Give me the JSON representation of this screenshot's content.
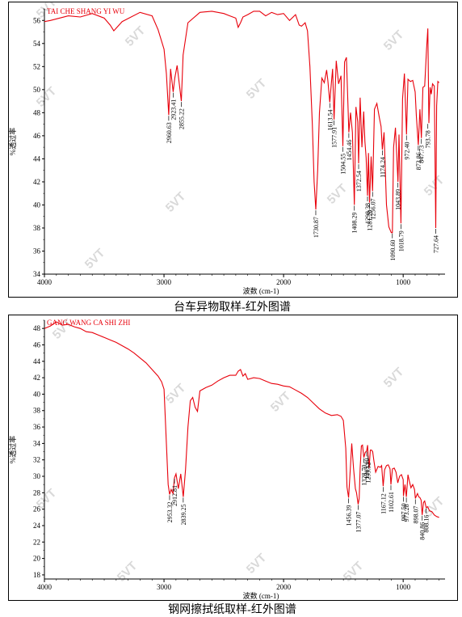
{
  "chart_data": [
    {
      "type": "line",
      "sample_label": "TAI CHE SHANG YI WU",
      "xlabel": "波数 (cm-1)",
      "ylabel": "%透过率",
      "caption": "台车异物取样-红外图谱",
      "xlim": [
        4000,
        650
      ],
      "ylim": [
        34,
        57
      ],
      "x_ticks": [
        4000,
        3000,
        2000,
        1000
      ],
      "y_ticks": [
        34,
        36,
        38,
        40,
        42,
        44,
        46,
        48,
        50,
        52,
        54,
        56
      ],
      "color": "#e8000b",
      "series": [
        {
          "x": [
            4000,
            3950,
            3800,
            3700,
            3600,
            3500,
            3450,
            3420,
            3350,
            3200,
            3100,
            3050,
            3000,
            2980,
            2960.63,
            2945,
            2923.41,
            2910,
            2890,
            2855.22,
            2840,
            2800,
            2700,
            2600,
            2500,
            2450,
            2400,
            2380,
            2360,
            2340,
            2300,
            2250,
            2200,
            2150,
            2100,
            2050,
            2000,
            1950,
            1900,
            1870,
            1850,
            1820,
            1800,
            1780,
            1760,
            1745,
            1730.87,
            1715,
            1700,
            1680,
            1660,
            1640,
            1630,
            1613.54,
            1600,
            1590,
            1577.91,
            1560,
            1540,
            1520,
            1504.55,
            1490,
            1475,
            1454.46,
            1440,
            1425,
            1408.29,
            1395,
            1380,
            1372.54,
            1360,
            1345,
            1330,
            1320,
            1310,
            1298.38,
            1290,
            1281.2,
            1268,
            1256.07,
            1240,
            1220,
            1200,
            1185,
            1174.24,
            1160,
            1140,
            1120,
            1100,
            1090.6,
            1080,
            1065,
            1043.89,
            1035,
            1018.79,
            1005,
            990,
            972.4,
            960,
            940,
            920,
            900,
            890,
            873.86,
            860,
            847.73,
            835,
            820,
            805,
            793.78,
            785,
            775,
            765,
            755,
            740,
            727.64,
            720,
            710,
            700
          ],
          "y": [
            55.9,
            56.0,
            56.4,
            56.3,
            56.6,
            56.2,
            55.6,
            55.1,
            55.9,
            56.7,
            56.4,
            55.2,
            53.5,
            51.4,
            47.8,
            51.8,
            49.8,
            51.0,
            52.1,
            49.0,
            53.0,
            55.8,
            56.7,
            56.8,
            56.6,
            56.4,
            56.2,
            55.4,
            55.8,
            56.3,
            56.5,
            56.8,
            56.8,
            56.4,
            56.7,
            56.5,
            56.6,
            56.0,
            56.5,
            55.6,
            55.5,
            55.8,
            55.1,
            52.0,
            47.0,
            42.0,
            39.6,
            43.0,
            48.0,
            51.0,
            50.6,
            51.7,
            50.8,
            48.9,
            50.6,
            51.8,
            47.4,
            52.5,
            50.5,
            51.2,
            45.1,
            52.4,
            52.8,
            46.3,
            48.0,
            46.3,
            40.0,
            48.5,
            47.2,
            43.6,
            49.3,
            45.0,
            48.1,
            45.5,
            44.1,
            40.8,
            44.5,
            40.2,
            44.2,
            41.2,
            48.3,
            48.8,
            47.6,
            46.8,
            44.8,
            46.3,
            40.0,
            38.1,
            37.6,
            37.6,
            45.0,
            46.7,
            42.0,
            46.1,
            38.4,
            49.2,
            51.4,
            46.1,
            50.9,
            50.7,
            50.8,
            49.8,
            47.7,
            45.2,
            48.3,
            45.8,
            50.2,
            50.3,
            53.5,
            55.3,
            47.1,
            50.2,
            49.6,
            50.5,
            50.3,
            38.0,
            48.6,
            50.7,
            50.6
          ]
        }
      ],
      "peaks": [
        {
          "x": 2960.63,
          "y": 47.8,
          "label": "2960.63"
        },
        {
          "x": 2923.41,
          "y": 49.8,
          "label": "2923.41"
        },
        {
          "x": 2855.22,
          "y": 49.0,
          "label": "2855.22"
        },
        {
          "x": 1730.87,
          "y": 39.6,
          "label": "1730.87"
        },
        {
          "x": 1613.54,
          "y": 48.9,
          "label": "1613.54"
        },
        {
          "x": 1577.91,
          "y": 47.4,
          "label": "1577.91"
        },
        {
          "x": 1504.55,
          "y": 45.1,
          "label": "1504.55"
        },
        {
          "x": 1454.46,
          "y": 46.3,
          "label": "1454.46"
        },
        {
          "x": 1408.29,
          "y": 40.0,
          "label": "1408.29"
        },
        {
          "x": 1372.54,
          "y": 43.6,
          "label": "1372.54"
        },
        {
          "x": 1298.38,
          "y": 40.8,
          "label": "1298.38"
        },
        {
          "x": 1281.2,
          "y": 40.2,
          "label": "1281.20"
        },
        {
          "x": 1256.07,
          "y": 41.2,
          "label": "1256.07"
        },
        {
          "x": 1174.24,
          "y": 44.8,
          "label": "1174.24"
        },
        {
          "x": 1090.6,
          "y": 37.6,
          "label": "1090.60"
        },
        {
          "x": 1043.89,
          "y": 42.0,
          "label": "1043.89"
        },
        {
          "x": 1018.79,
          "y": 38.4,
          "label": "1018.79"
        },
        {
          "x": 972.4,
          "y": 46.1,
          "label": "972.40"
        },
        {
          "x": 873.86,
          "y": 45.2,
          "label": "873.86"
        },
        {
          "x": 847.73,
          "y": 45.8,
          "label": "847.73"
        },
        {
          "x": 793.78,
          "y": 47.1,
          "label": "793.78"
        },
        {
          "x": 727.64,
          "y": 38.0,
          "label": "727.64"
        }
      ]
    },
    {
      "type": "line",
      "sample_label": "GANG WANG CA SHI ZHI",
      "xlabel": "波数 (cm-1)",
      "ylabel": "%透过率",
      "caption": "钢网擦拭纸取样-红外图谱",
      "xlim": [
        4000,
        650
      ],
      "ylim": [
        17.5,
        49
      ],
      "x_ticks": [
        4000,
        3000,
        2000,
        1000
      ],
      "y_ticks": [
        18,
        20,
        22,
        24,
        26,
        28,
        30,
        32,
        34,
        36,
        38,
        40,
        42,
        44,
        46,
        48
      ],
      "color": "#e8000b",
      "series": [
        {
          "x": [
            4000,
            3950,
            3900,
            3850,
            3800,
            3750,
            3700,
            3650,
            3600,
            3550,
            3500,
            3450,
            3400,
            3350,
            3300,
            3250,
            3200,
            3150,
            3100,
            3050,
            3020,
            3000,
            2980,
            2965,
            2953.32,
            2940,
            2925,
            2912.81,
            2900,
            2880,
            2860,
            2839.25,
            2820,
            2800,
            2780,
            2760,
            2740,
            2720,
            2700,
            2650,
            2600,
            2550,
            2500,
            2450,
            2400,
            2380,
            2360,
            2340,
            2320,
            2300,
            2250,
            2200,
            2150,
            2100,
            2050,
            2000,
            1950,
            1900,
            1850,
            1800,
            1750,
            1700,
            1650,
            1600,
            1550,
            1520,
            1500,
            1480,
            1470,
            1456.39,
            1445,
            1430,
            1415,
            1400,
            1390,
            1377.07,
            1368,
            1360,
            1350,
            1340,
            1328.7,
            1318,
            1305.0,
            1298,
            1293.52,
            1285,
            1275,
            1265,
            1255,
            1245,
            1230,
            1210,
            1190,
            1180,
            1167.12,
            1155,
            1140,
            1125,
            1110,
            1102.61,
            1090,
            1075,
            1060,
            1045,
            1030,
            1015,
            1000,
            997.5,
            985,
            973.28,
            960,
            950,
            935,
            920,
            905,
            898.07,
            890,
            880,
            870,
            860,
            850,
            840.86,
            830,
            820,
            808.16,
            795,
            780,
            760,
            740,
            720,
            700
          ],
          "y": [
            48.0,
            48.3,
            48.8,
            48.4,
            48.5,
            48.2,
            48.0,
            47.6,
            47.5,
            47.2,
            46.9,
            46.6,
            46.3,
            45.9,
            45.5,
            45.0,
            44.4,
            43.8,
            43.0,
            42.2,
            41.5,
            40.6,
            34.0,
            29.0,
            27.8,
            28.4,
            27.9,
            29.8,
            30.3,
            28.5,
            30.3,
            27.5,
            30.8,
            36.0,
            39.2,
            39.6,
            38.4,
            37.9,
            40.4,
            40.8,
            41.1,
            41.6,
            42.0,
            42.3,
            42.3,
            42.8,
            43.0,
            42.2,
            42.5,
            41.8,
            42.0,
            41.9,
            41.6,
            41.3,
            41.2,
            41.0,
            40.9,
            40.5,
            40.1,
            39.6,
            38.9,
            38.2,
            37.7,
            37.4,
            37.5,
            37.3,
            36.8,
            33.4,
            28.7,
            27.4,
            30.2,
            34.0,
            31.0,
            28.5,
            28.0,
            26.6,
            27.3,
            31.0,
            33.7,
            33.8,
            32.3,
            32.9,
            33.1,
            33.8,
            32.6,
            31.0,
            33.2,
            33.2,
            33.0,
            31.9,
            30.5,
            31.2,
            31.1,
            31.3,
            28.8,
            30.8,
            31.3,
            31.4,
            30.9,
            29.0,
            30.9,
            31.0,
            30.5,
            29.2,
            30.0,
            30.2,
            29.6,
            27.6,
            29.0,
            27.5,
            30.2,
            29.5,
            28.6,
            29.0,
            28.4,
            27.3,
            27.6,
            27.9,
            27.5,
            27.4,
            27.1,
            25.3,
            26.8,
            27.0,
            26.2,
            26.3,
            25.8,
            25.7,
            25.3,
            25.1,
            25.0
          ]
        }
      ],
      "peaks": [
        {
          "x": 2953.32,
          "y": 27.8,
          "label": "2953.32"
        },
        {
          "x": 2912.81,
          "y": 29.8,
          "label": "2912.81"
        },
        {
          "x": 2839.25,
          "y": 27.5,
          "label": "2839.25"
        },
        {
          "x": 1456.39,
          "y": 27.4,
          "label": "1456.39"
        },
        {
          "x": 1377.07,
          "y": 26.6,
          "label": "1377.07"
        },
        {
          "x": 1328.7,
          "y": 32.3,
          "label": "1328.70"
        },
        {
          "x": 1305.0,
          "y": 33.1,
          "label": "1305.00"
        },
        {
          "x": 1293.52,
          "y": 32.6,
          "label": "1293.52"
        },
        {
          "x": 1167.12,
          "y": 28.8,
          "label": "1167.12"
        },
        {
          "x": 1102.61,
          "y": 29.0,
          "label": "1102.61"
        },
        {
          "x": 997.5,
          "y": 27.6,
          "label": "997.50"
        },
        {
          "x": 973.28,
          "y": 27.5,
          "label": "973.28"
        },
        {
          "x": 898.07,
          "y": 27.3,
          "label": "898.07"
        },
        {
          "x": 840.86,
          "y": 25.3,
          "label": "840.86"
        },
        {
          "x": 808.16,
          "y": 26.2,
          "label": "808.16"
        }
      ]
    }
  ]
}
